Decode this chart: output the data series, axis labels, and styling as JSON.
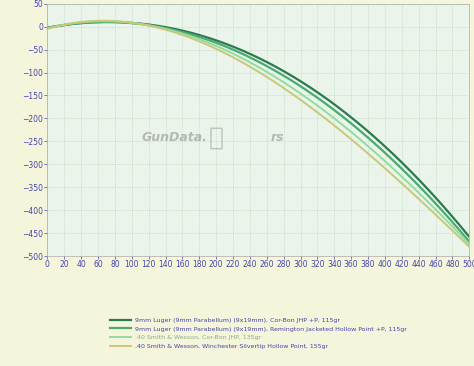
{
  "background_color": "#f5f5dc",
  "plot_background": "#eaf4ea",
  "xlim": [
    0,
    500
  ],
  "ylim": [
    -500,
    50
  ],
  "xticks": [
    0,
    20,
    40,
    60,
    80,
    100,
    120,
    140,
    160,
    180,
    200,
    220,
    240,
    260,
    280,
    300,
    320,
    340,
    360,
    380,
    400,
    420,
    440,
    460,
    480,
    500
  ],
  "yticks": [
    50,
    0,
    -50,
    -100,
    -150,
    -200,
    -250,
    -300,
    -350,
    -400,
    -450,
    -500
  ],
  "series": [
    {
      "label": "9mm Luger (9mm Parabellum) (9x19mm), Cor-Bon JHP +P, 115gr",
      "color": "#2a7a50",
      "linewidth": 1.6,
      "key_points": [
        [
          0,
          0
        ],
        [
          80,
          5
        ],
        [
          200,
          -30
        ],
        [
          300,
          -110
        ],
        [
          400,
          -270
        ],
        [
          500,
          -455
        ]
      ]
    },
    {
      "label": "9mm Luger (9mm Parabellum) (9x19mm), Remington Jacketed Hollow Point +P, 115gr",
      "color": "#4aaa70",
      "linewidth": 1.6,
      "key_points": [
        [
          0,
          0
        ],
        [
          80,
          4
        ],
        [
          200,
          -35
        ],
        [
          300,
          -120
        ],
        [
          400,
          -285
        ],
        [
          500,
          -465
        ]
      ]
    },
    {
      "label": ".40 Smith & Wesson, Cor-Bon JHP, 135gr",
      "color": "#90dda0",
      "linewidth": 1.4,
      "key_points": [
        [
          0,
          0
        ],
        [
          80,
          3
        ],
        [
          200,
          -40
        ],
        [
          300,
          -135
        ],
        [
          400,
          -305
        ],
        [
          500,
          -470
        ]
      ]
    },
    {
      "label": ".40 Smith & Wesson, Winchester Silvertip Hollow Point, 155gr",
      "color": "#c8c878",
      "linewidth": 1.4,
      "key_points": [
        [
          0,
          0
        ],
        [
          80,
          2
        ],
        [
          200,
          -45
        ],
        [
          300,
          -148
        ],
        [
          400,
          -322
        ],
        [
          500,
          -475
        ]
      ]
    }
  ],
  "watermark_text": "GunData.",
  "watermark_text2": "rs",
  "tick_color": "#4444aa",
  "tick_fontsize": 5.5,
  "grid_color": "#aaccaa",
  "legend_fontsize": 4.5,
  "legend_label_colors": [
    "#2a2a2a",
    "#2a2a2a",
    "#88aa88",
    "#2a2a2a"
  ]
}
